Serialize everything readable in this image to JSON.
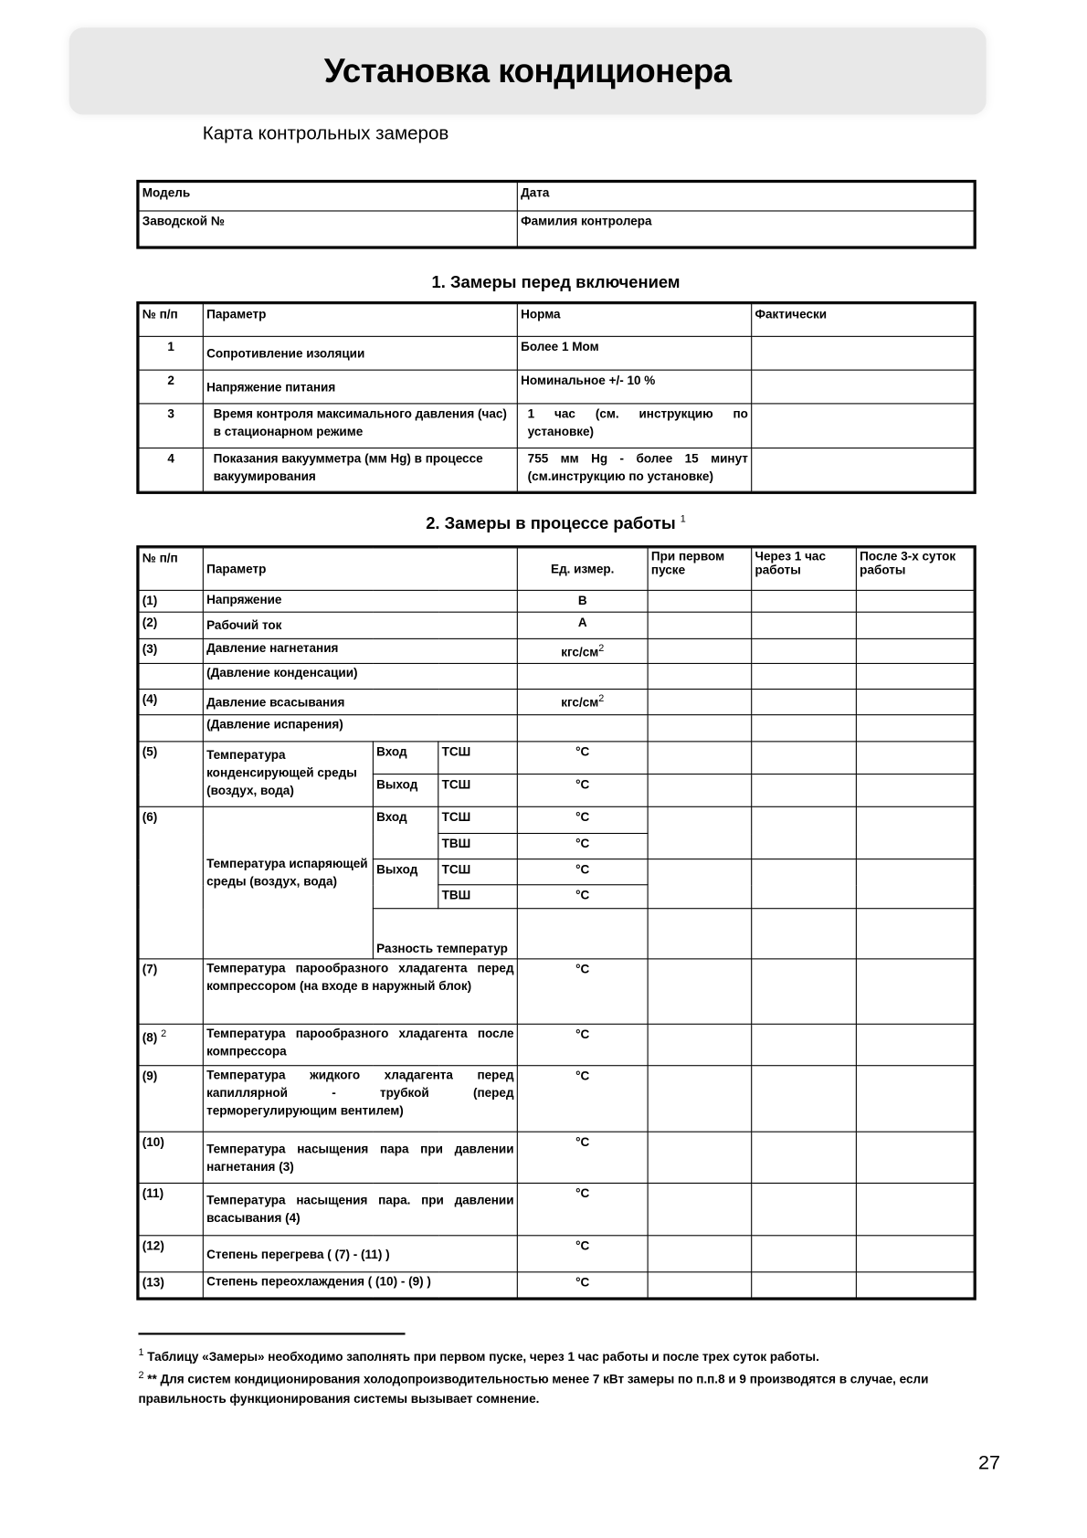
{
  "header": {
    "title": "Установка кондиционера",
    "subtitle": "Карта контрольных замеров"
  },
  "info_table": {
    "model": "Модель",
    "date": "Дата",
    "serial": "Заводской №",
    "inspector": "Фамилия контролера"
  },
  "section1": {
    "title": "1. Замеры перед включением",
    "headers": [
      "№ п/п",
      "Параметр",
      "Норма",
      "Фактически"
    ],
    "rows": [
      {
        "num": "1",
        "param": "Сопротивление изоляции",
        "norm": "Более 1 Мом"
      },
      {
        "num": "2",
        "param": "Напряжение питания",
        "norm": "Номинальное +/- 10 %"
      },
      {
        "num": "3",
        "param": "Время контроля максимального давления (час)  в стационарном режиме",
        "norm": "1 час (см. инструкцию по установке)"
      },
      {
        "num": "4",
        "param": "Показания вакуумметра (мм Hg) в процессе вакуумирования",
        "norm": "755 мм Hg - более 15 минут (см.инструкцию по установке)"
      }
    ]
  },
  "section2": {
    "title": "2. Замеры в процессе работы",
    "title_sup": "1",
    "headers": [
      "№ п/п",
      "Параметр",
      "Ед. измер.",
      "При первом пуске",
      "Через 1 час работы",
      "После 3-х суток работы"
    ],
    "rows": [
      {
        "num": "(1)",
        "param": "Напряжение",
        "unit": "В"
      },
      {
        "num": "(2)",
        "param": "Рабочий ток",
        "unit": "А"
      },
      {
        "num": "(3)",
        "param": "Давление нагнетания",
        "unit": "кгс/см",
        "unit_sup": "2"
      },
      {
        "num": "",
        "param": "(Давление конденсации)",
        "unit": ""
      },
      {
        "num": "(4)",
        "param": "Давление всасывания",
        "unit": "кгс/см",
        "unit_sup": "2"
      },
      {
        "num": "",
        "param": "(Давление испарения)",
        "unit": ""
      }
    ],
    "row5": {
      "num": "(5)",
      "param": "Температура конденсирующей среды (воздух, вода)",
      "in": "Вход",
      "out": "Выход",
      "tsh": "ТСШ",
      "unit": "°С"
    },
    "row6": {
      "num": "(6)",
      "param": "Температура испаряющей среды (воздух, вода)",
      "in": "Вход",
      "out": "Выход",
      "tsh": "ТСШ",
      "tvsh": "ТВШ",
      "unit": "°С",
      "diff": "Разность температур"
    },
    "rows2": [
      {
        "num": "(7)",
        "param": "Температура парообразного хладагента перед компрессором (на входе в наружный блок)",
        "unit": "°С"
      },
      {
        "num": "(8)",
        "num_sup": "2",
        "param": "Температура парообразного хладагента после компрессора",
        "unit": "°С"
      },
      {
        "num": "(9)",
        "param": "Температура жидкого хладагента перед капиллярной - трубкой (перед терморегулирующим вентилем)",
        "unit": "°С"
      },
      {
        "num": "(10)",
        "param": "Температура насыщения пара при давлении нагнетания (3)",
        "unit": "°С"
      },
      {
        "num": "(11)",
        "param": "Температура насыщения пара. при давлении всасывания (4)",
        "unit": "°С"
      },
      {
        "num": "(12)",
        "param": "Степень перегрева ( (7) - (11) )",
        "unit": "°С"
      },
      {
        "num": "(13)",
        "param": "Степень переохлаждения ( (10) - (9) )",
        "unit": "°С"
      }
    ]
  },
  "footnotes": [
    {
      "mark": "1",
      "text": " Таблицу «Замеры» необходимо заполнять при первом пуске, через 1 час работы и после трех суток работы."
    },
    {
      "mark": "2",
      "text": " ** Для систем кондиционирования холодопроизводительностью менее 7 кВт замеры по п.п.8 и 9 производятся в случае, если правильность функционирования  системы вызывает сомнение."
    }
  ],
  "page_number": "27"
}
